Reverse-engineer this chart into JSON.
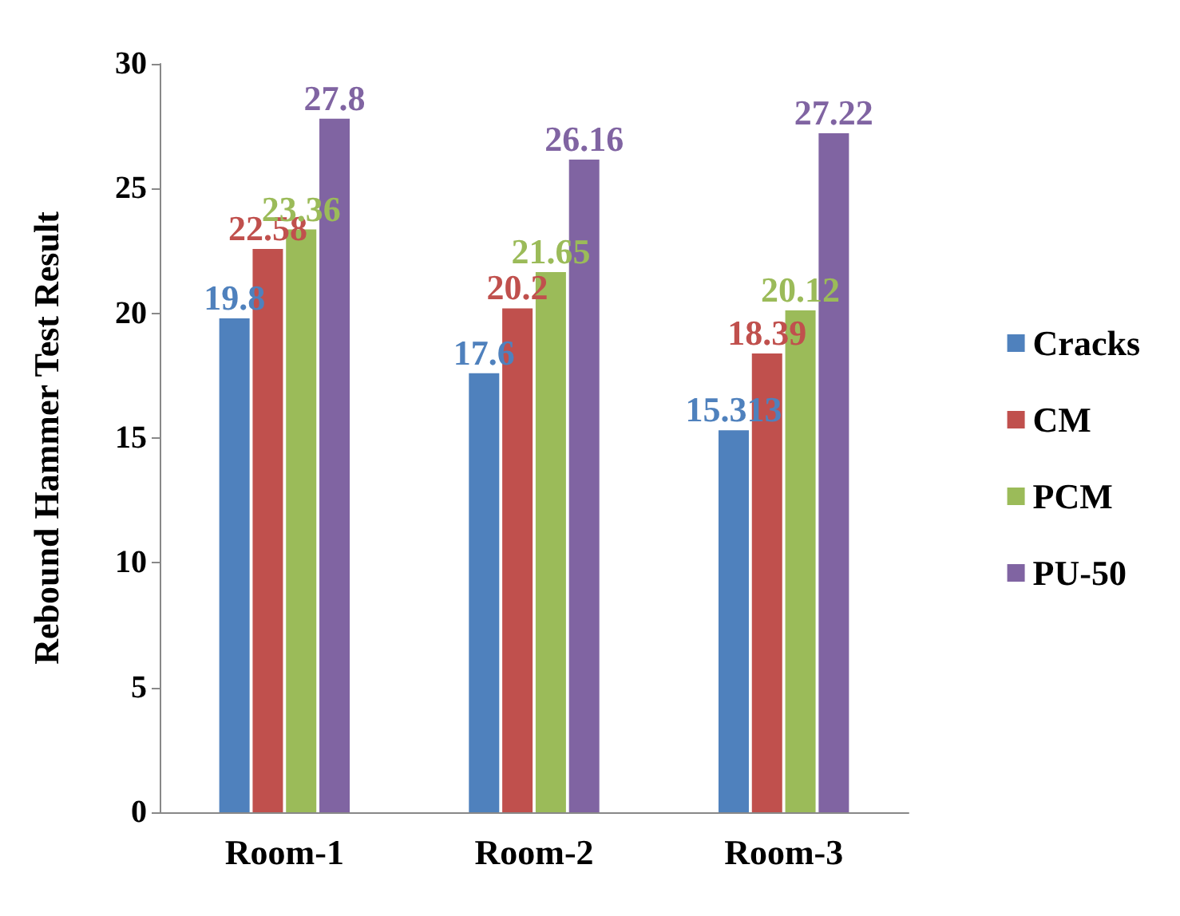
{
  "chart_data": {
    "type": "bar",
    "ylabel": "Rebound Hammer Test Result",
    "categories": [
      "Room-1",
      "Room-2",
      "Room-3"
    ],
    "series": [
      {
        "name": "Cracks",
        "color": "#4f81bd",
        "values": [
          19.8,
          17.6,
          15.313
        ]
      },
      {
        "name": "CM",
        "color": "#c0504d",
        "values": [
          22.58,
          20.2,
          18.39
        ]
      },
      {
        "name": "PCM",
        "color": "#9bbb59",
        "values": [
          23.36,
          21.65,
          20.12
        ]
      },
      {
        "name": "PU-50",
        "color": "#8064a2",
        "values": [
          27.8,
          26.16,
          27.22
        ]
      }
    ],
    "ylim": [
      0,
      30
    ],
    "yticks": [
      0,
      5,
      10,
      15,
      20,
      25,
      30
    ],
    "grid": false,
    "legend": "right",
    "data_labels": true
  }
}
